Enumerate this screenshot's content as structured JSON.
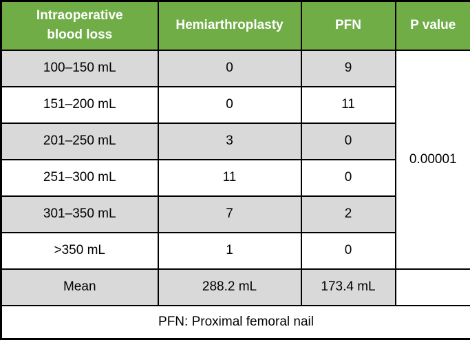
{
  "header": {
    "col1": "Intraoperative\nblood loss",
    "col1_line1": "Intraoperative",
    "col1_line2": "blood loss",
    "col2": "Hemiarthroplasty",
    "col3": "PFN",
    "col4": "P value"
  },
  "rows": [
    {
      "range": "100–150 mL",
      "hemi": "0",
      "pfn": "9"
    },
    {
      "range": "151–200 mL",
      "hemi": "0",
      "pfn": "11"
    },
    {
      "range": "201–250 mL",
      "hemi": "3",
      "pfn": "0"
    },
    {
      "range": "251–300 mL",
      "hemi": "11",
      "pfn": "0"
    },
    {
      "range": "301–350 mL",
      "hemi": "7",
      "pfn": "2"
    },
    {
      "range": ">350 mL",
      "hemi": "1",
      "pfn": "0"
    }
  ],
  "p_value": "0.00001",
  "mean": {
    "label": "Mean",
    "hemi": "288.2 mL",
    "pfn": "173.4 mL"
  },
  "footnote": "PFN: Proximal femoral nail",
  "colors": {
    "header_bg": "#70ad47",
    "stripe": "#d9d9d9",
    "border": "#000000"
  }
}
